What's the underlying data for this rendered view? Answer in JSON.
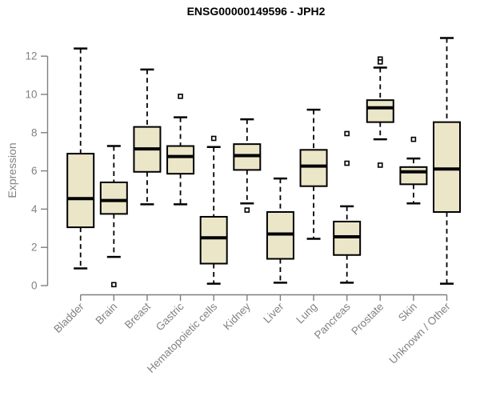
{
  "chart_data": {
    "type": "boxplot",
    "title": "ENSG00000149596 - JPH2",
    "ylabel": "Expression",
    "xlabel": "",
    "ylim": [
      0,
      13.4
    ],
    "yticks": [
      0,
      2,
      4,
      6,
      8,
      10,
      12
    ],
    "grid": false,
    "legend": "none",
    "categories": [
      "Bladder",
      "Brain",
      "Breast",
      "Gastric",
      "Hematopoietic cells",
      "Kidney",
      "Liver",
      "Lung",
      "Pancreas",
      "Prostate",
      "Skin",
      "Unknown / Other"
    ],
    "series": [
      {
        "category": "Bladder",
        "whisker_low": 0.9,
        "q1": 3.05,
        "median": 4.55,
        "q3": 6.9,
        "whisker_high": 12.4,
        "outliers": []
      },
      {
        "category": "Brain",
        "whisker_low": 1.5,
        "q1": 3.75,
        "median": 4.45,
        "q3": 5.4,
        "whisker_high": 7.3,
        "outliers": [
          0.05
        ]
      },
      {
        "category": "Breast",
        "whisker_low": 4.25,
        "q1": 5.95,
        "median": 7.15,
        "q3": 8.3,
        "whisker_high": 11.3,
        "outliers": []
      },
      {
        "category": "Gastric",
        "whisker_low": 4.25,
        "q1": 5.85,
        "median": 6.75,
        "q3": 7.3,
        "whisker_high": 8.8,
        "outliers": [
          9.9
        ]
      },
      {
        "category": "Hematopoietic cells",
        "whisker_low": 0.1,
        "q1": 1.15,
        "median": 2.5,
        "q3": 3.6,
        "whisker_high": 7.25,
        "outliers": [
          7.7
        ]
      },
      {
        "category": "Kidney",
        "whisker_low": 4.3,
        "q1": 6.05,
        "median": 6.8,
        "q3": 7.4,
        "whisker_high": 8.7,
        "outliers": [
          3.95
        ]
      },
      {
        "category": "Liver",
        "whisker_low": 0.15,
        "q1": 1.4,
        "median": 2.7,
        "q3": 3.85,
        "whisker_high": 5.6,
        "outliers": []
      },
      {
        "category": "Lung",
        "whisker_low": 2.45,
        "q1": 5.2,
        "median": 6.25,
        "q3": 7.1,
        "whisker_high": 9.2,
        "outliers": []
      },
      {
        "category": "Pancreas",
        "whisker_low": 0.15,
        "q1": 1.6,
        "median": 2.55,
        "q3": 3.35,
        "whisker_high": 4.15,
        "outliers": [
          7.95,
          6.4
        ]
      },
      {
        "category": "Prostate",
        "whisker_low": 7.65,
        "q1": 8.55,
        "median": 9.3,
        "q3": 9.7,
        "whisker_high": 11.4,
        "outliers": [
          11.85,
          11.7,
          6.3
        ]
      },
      {
        "category": "Skin",
        "whisker_low": 4.3,
        "q1": 5.3,
        "median": 5.95,
        "q3": 6.2,
        "whisker_high": 6.65,
        "outliers": [
          7.65
        ]
      },
      {
        "category": "Unknown / Other",
        "whisker_low": 0.1,
        "q1": 3.85,
        "median": 6.1,
        "q3": 8.55,
        "whisker_high": 12.95,
        "outliers": []
      }
    ],
    "colors": {
      "box_fill": "#ECE6C9",
      "box_border": "#000000",
      "median": "#000000",
      "whisker": "#000000",
      "outlier_fill": "#ffffff",
      "outlier_border": "#000000",
      "axis": "#7f7f7f",
      "tick_label": "#828282",
      "title": "#000000",
      "background": "#ffffff"
    }
  }
}
